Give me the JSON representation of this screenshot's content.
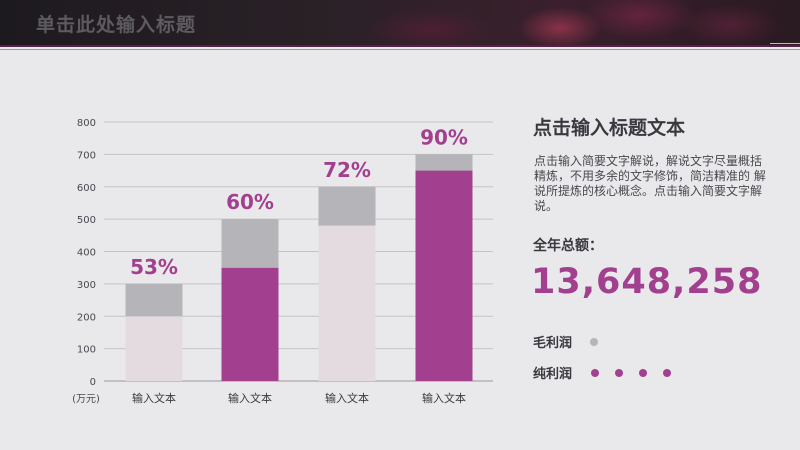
{
  "header": {
    "title": "单击此处输入标题"
  },
  "right_panel": {
    "title": "点击输入标题文本",
    "description": "点击输入简要文字解说，解说文字尽量概括精炼，不用多余的文字修饰，简洁精准的 解说所提炼的核心概念。点击输入简要文字解说。",
    "total_label": "全年总额：",
    "total_value": "13,648,258",
    "legend": [
      {
        "label": "毛利润",
        "color": "#b5b4b8",
        "dots": 1
      },
      {
        "label": "纯利润",
        "color": "#a33f8f",
        "dots": 4
      }
    ]
  },
  "colors": {
    "accent": "#a33f8f",
    "bar_grey": "#b5b4b8",
    "bar_light": "#e3dbe0"
  },
  "chart_data": {
    "type": "bar",
    "stacked": true,
    "categories": [
      "输入文本",
      "输入文本",
      "输入文本",
      "输入文本"
    ],
    "series": [
      {
        "values": [
          200,
          350,
          480,
          650
        ]
      },
      {
        "values": [
          100,
          150,
          120,
          50
        ]
      }
    ],
    "totals": [
      300,
      500,
      600,
      700
    ],
    "percent_labels": [
      "53%",
      "60%",
      "72%",
      "90%"
    ],
    "ylim": [
      0,
      800
    ],
    "yticks": [
      0,
      100,
      200,
      300,
      400,
      500,
      600,
      700,
      800
    ],
    "yunit": "(万元)",
    "grid": true
  }
}
